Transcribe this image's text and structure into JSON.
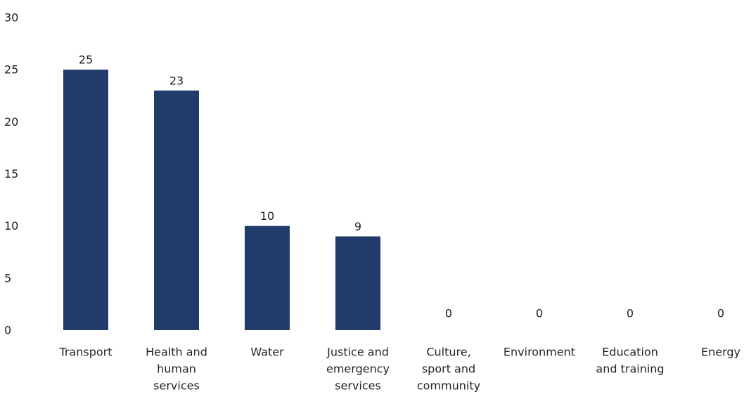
{
  "chart_data": {
    "type": "bar",
    "categories": [
      "Transport",
      "Health and human services",
      "Water",
      "Justice and emergency services",
      "Culture, sport and community",
      "Environment",
      "Education and training",
      "Energy"
    ],
    "category_lines": [
      [
        "Transport"
      ],
      [
        "Health and",
        "human",
        "services"
      ],
      [
        "Water"
      ],
      [
        "Justice and",
        "emergency",
        "services"
      ],
      [
        "Culture,",
        "sport and",
        "community"
      ],
      [
        "Environment"
      ],
      [
        "Education",
        "and training"
      ],
      [
        "Energy"
      ]
    ],
    "values": [
      25,
      23,
      10,
      9,
      0,
      0,
      0,
      0
    ],
    "data_labels": [
      "25",
      "23",
      "10",
      "9",
      "0",
      "0",
      "0",
      "0"
    ],
    "yticks": [
      0,
      5,
      10,
      15,
      20,
      25,
      30
    ],
    "ylim": [
      0,
      30
    ],
    "grid": false,
    "legend": "none",
    "bar_color": "#213B6B",
    "title": "",
    "xlabel": "",
    "ylabel": ""
  }
}
